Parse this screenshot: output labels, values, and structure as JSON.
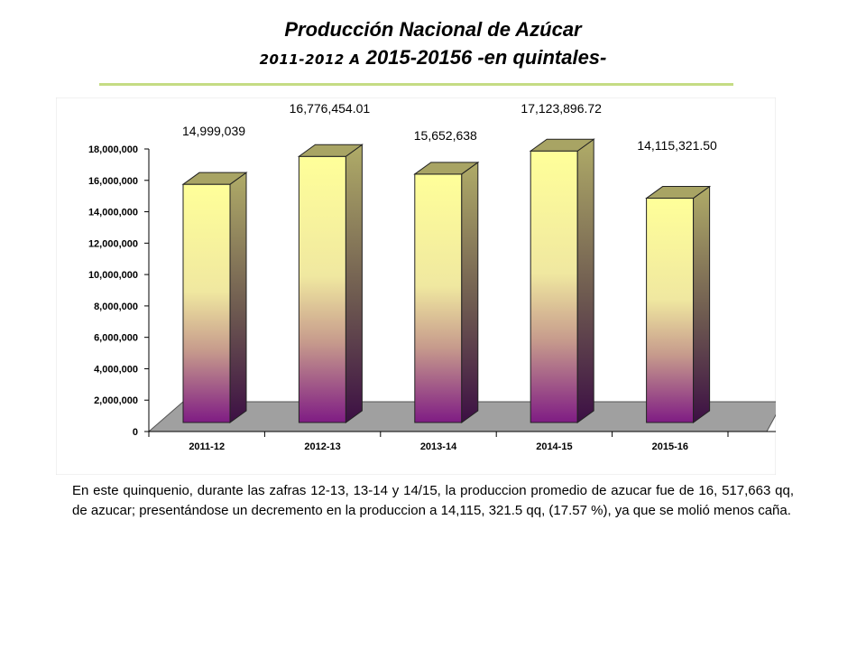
{
  "page": {
    "title": "Producción Nacional de Azúcar",
    "subtitle_range": "2011-2012 A",
    "subtitle_rest": "2015-20156 -en quintales-",
    "description": "En este quinquenio, durante las zafras  12-13, 13-14 y 14/15, la produccion promedio de azucar fue de 16, 517,663 qq,   de azucar; presentándose un decremento en la produccion a 14,115, 321.5 qq, (17.57 %), ya que se molió menos caña."
  },
  "colors": {
    "bar_top": "#ffff99",
    "bar_bottom": "#7f1c84",
    "bar_side": "#a8a464",
    "floor": "#a0a0a0",
    "accent_rule": "#c5dc84"
  },
  "chart_data": {
    "type": "bar",
    "categories": [
      "2011-12",
      "2012-13",
      "2013-14",
      "2014-15",
      "2015-16"
    ],
    "values": [
      14999039,
      16776454.01,
      15652638,
      17123896.72,
      14115321.5
    ],
    "data_labels": [
      "14,999,039",
      "16,776,454.01",
      "15,652,638",
      "17,123,896.72",
      "14,115,321.50"
    ],
    "yticks": [
      "0",
      "2,000,000",
      "4,000,000",
      "6,000,000",
      "8,000,000",
      "10,000,000",
      "12,000,000",
      "14,000,000",
      "16,000,000",
      "18,000,000"
    ],
    "ylim": [
      0,
      18000000
    ],
    "grid": false,
    "legend": "none",
    "style": "3d-column"
  }
}
